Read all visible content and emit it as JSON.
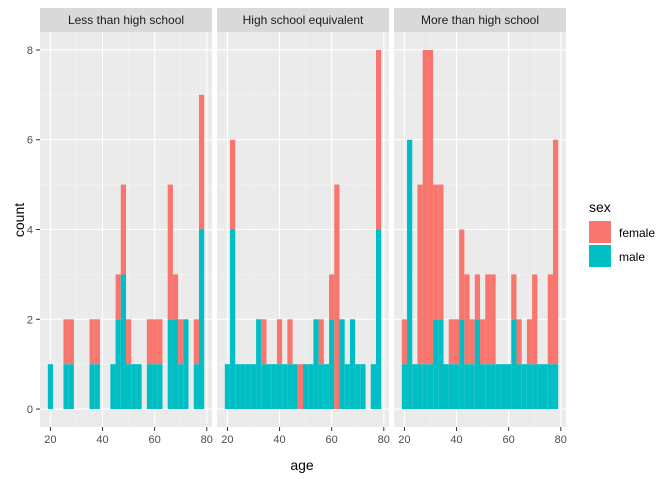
{
  "chart_data": {
    "type": "bar",
    "kind": "stacked histogram, faceted",
    "xlabel": "age",
    "ylabel": "count",
    "xlim": [
      16,
      82
    ],
    "ylim": [
      -0.4,
      8.4
    ],
    "xticks": [
      20,
      40,
      60,
      80
    ],
    "yticks": [
      0,
      2,
      4,
      6,
      8
    ],
    "grid": true,
    "legend_position": "right",
    "legend": {
      "title": "sex",
      "entries": [
        {
          "label": "female",
          "color": "#F8766D"
        },
        {
          "label": "male",
          "color": "#00BFC4"
        }
      ]
    },
    "bin_starts": [
      20,
      22,
      24,
      26,
      28,
      30,
      32,
      34,
      36,
      38,
      40,
      42,
      44,
      46,
      48,
      50,
      52,
      54,
      56,
      58,
      60,
      62,
      64,
      66,
      68,
      70,
      72,
      74,
      76,
      78
    ],
    "bin_width": 2,
    "facets": [
      {
        "title": "Less than high school",
        "male": [
          1,
          0,
          0,
          1,
          1,
          0,
          0,
          0,
          1,
          1,
          0,
          0,
          1,
          2,
          3,
          1,
          1,
          1,
          0,
          1,
          1,
          1,
          0,
          2,
          2,
          1,
          2,
          0,
          1,
          4
        ],
        "female": [
          0,
          0,
          0,
          1,
          1,
          0,
          0,
          0,
          1,
          1,
          0,
          0,
          0,
          1,
          2,
          1,
          0,
          0,
          0,
          1,
          1,
          1,
          0,
          3,
          1,
          1,
          0,
          0,
          1,
          3
        ]
      },
      {
        "title": "High school equivalent",
        "male": [
          1,
          4,
          1,
          1,
          1,
          1,
          2,
          1,
          1,
          1,
          1,
          1,
          1,
          1,
          0,
          1,
          1,
          2,
          1,
          1,
          2,
          0,
          2,
          1,
          2,
          1,
          1,
          0,
          1,
          4
        ],
        "female": [
          0,
          2,
          0,
          0,
          0,
          0,
          0,
          1,
          0,
          0,
          1,
          0,
          1,
          0,
          1,
          0,
          0,
          0,
          1,
          0,
          1,
          5,
          0,
          0,
          0,
          0,
          0,
          0,
          0,
          4
        ]
      },
      {
        "title": "More than high school",
        "male": [
          1,
          6,
          1,
          1,
          1,
          1,
          2,
          2,
          1,
          1,
          1,
          2,
          1,
          1,
          2,
          1,
          1,
          1,
          1,
          1,
          1,
          2,
          1,
          1,
          1,
          1,
          1,
          1,
          1,
          1
        ],
        "female": [
          1,
          0,
          0,
          4,
          7,
          7,
          3,
          3,
          0,
          1,
          1,
          2,
          2,
          1,
          1,
          1,
          2,
          2,
          0,
          0,
          0,
          1,
          1,
          0,
          1,
          2,
          0,
          0,
          2,
          5
        ]
      }
    ]
  }
}
